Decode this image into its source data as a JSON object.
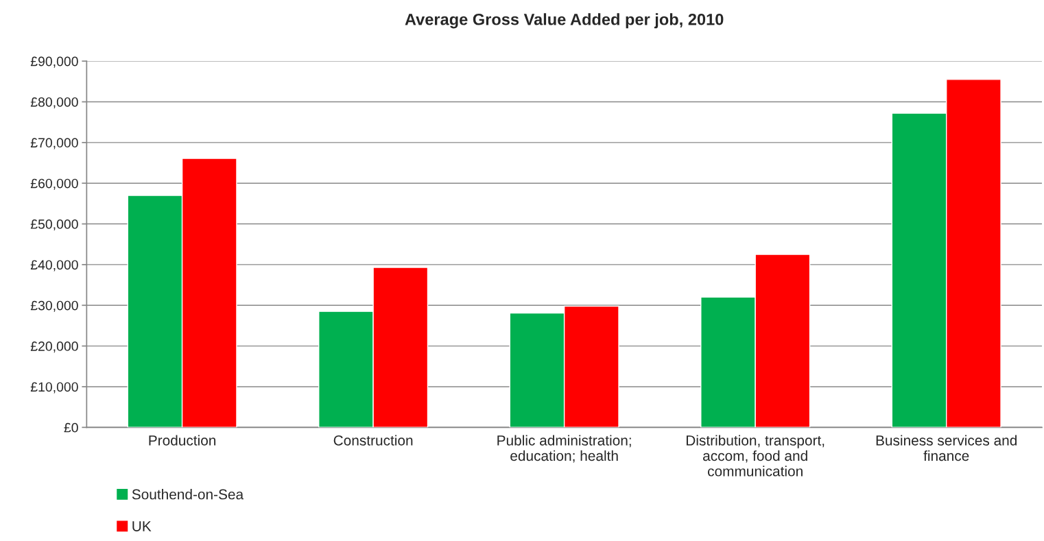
{
  "chart_data": {
    "type": "bar",
    "title": "Average Gross Value Added per job, 2010",
    "categories": [
      "Production",
      "Construction",
      "Public administration;\neducation; health",
      "Distribution, transport,\naccom, food and\ncommunication",
      "Business services and\nfinance"
    ],
    "series": [
      {
        "name": "Southend-on-Sea",
        "color": "#00b050",
        "values": [
          57000,
          28500,
          28100,
          32000,
          77200
        ]
      },
      {
        "name": "UK",
        "color": "#ff0000",
        "values": [
          66100,
          39300,
          29800,
          42500,
          85500
        ]
      }
    ],
    "ylim": [
      0,
      90000
    ],
    "yticks": [
      {
        "value": 0,
        "label": "£0"
      },
      {
        "value": 10000,
        "label": "£10,000"
      },
      {
        "value": 20000,
        "label": "£20,000"
      },
      {
        "value": 30000,
        "label": "£30,000"
      },
      {
        "value": 40000,
        "label": "£40,000"
      },
      {
        "value": 50000,
        "label": "£50,000"
      },
      {
        "value": 60000,
        "label": "£60,000"
      },
      {
        "value": 70000,
        "label": "£70,000"
      },
      {
        "value": 80000,
        "label": "£80,000"
      },
      {
        "value": 90000,
        "label": "£90,000"
      }
    ],
    "grid": "y",
    "legend": "bottom left"
  }
}
